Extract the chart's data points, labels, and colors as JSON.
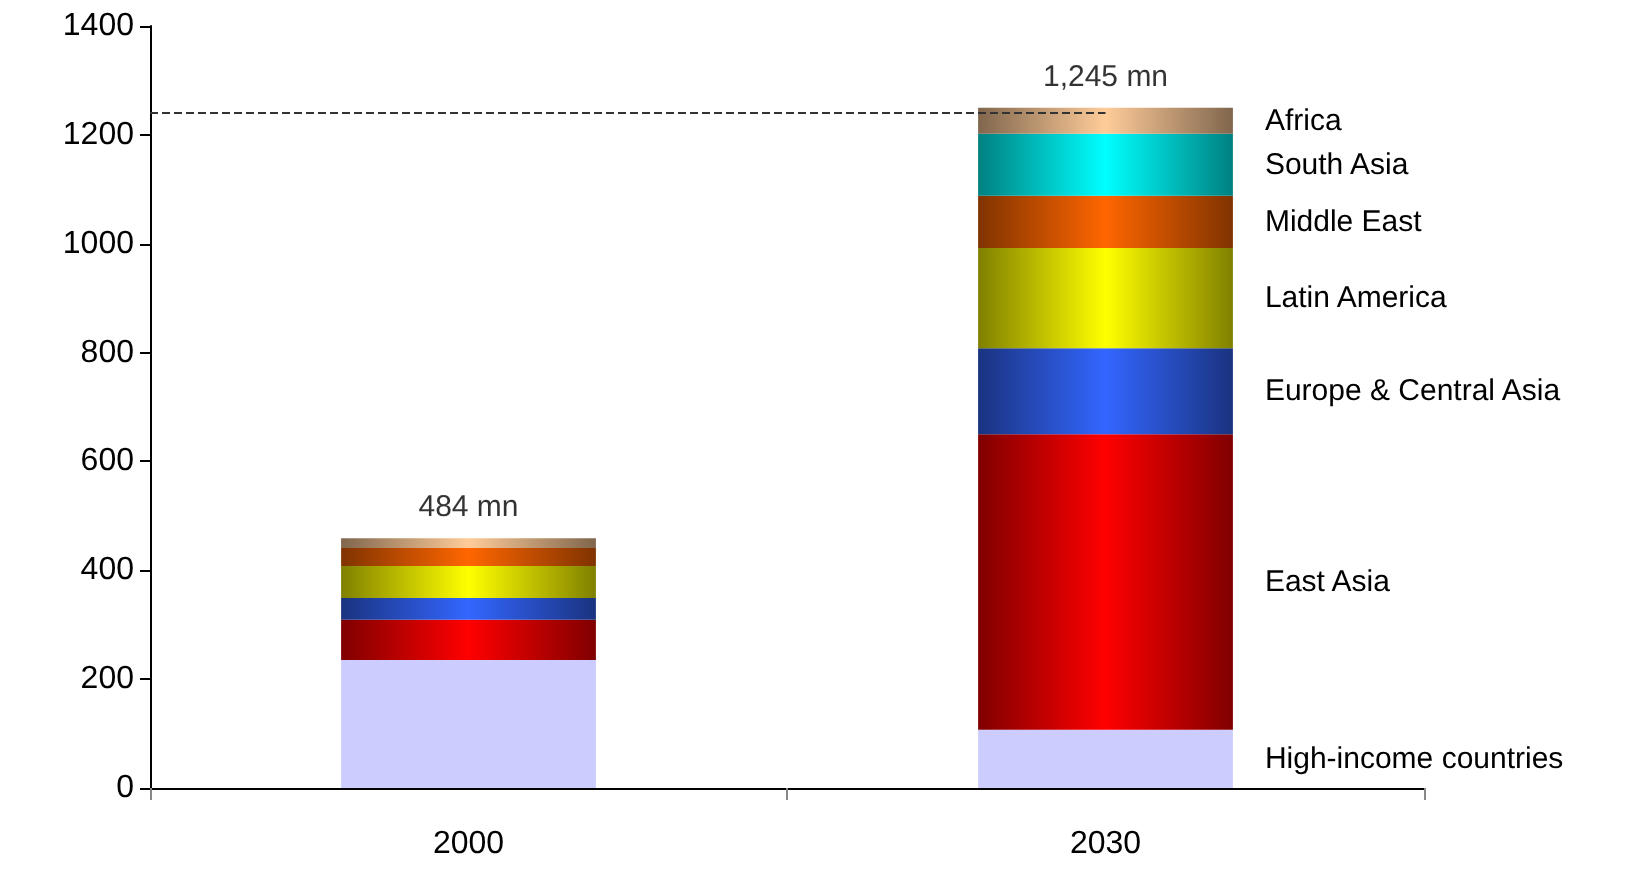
{
  "chart_data": {
    "type": "bar",
    "stacked": true,
    "categories": [
      "2000",
      "2030"
    ],
    "series": [
      {
        "name": "High-income countries",
        "color": "#ccccff",
        "values": [
          235,
          107
        ]
      },
      {
        "name": "East Asia",
        "color": "#ff0000",
        "values": [
          74,
          543
        ]
      },
      {
        "name": "Europe & Central Asia",
        "color": "#3366ff",
        "values": [
          40,
          158
        ]
      },
      {
        "name": "Latin America",
        "color": "#ffff00",
        "values": [
          59,
          184
        ]
      },
      {
        "name": "Middle East",
        "color": "#ff6600",
        "values": [
          33,
          96
        ]
      },
      {
        "name": "South Asia",
        "color": "#00ffff",
        "values": [
          0,
          114
        ]
      },
      {
        "name": "Africa",
        "color": "#ffcc99",
        "values": [
          18,
          48
        ]
      }
    ],
    "annotations": [
      {
        "text": "484 mn",
        "x": "2000",
        "y": 459
      },
      {
        "text": "1,245 mn",
        "x": "2030",
        "y": 1250
      }
    ],
    "ylim": [
      0,
      1400
    ],
    "yticks": [
      0,
      200,
      400,
      600,
      800,
      {
        "value": 1000,
        "label": "1000"
      },
      {
        "value": 1200,
        "label": "1200"
      },
      {
        "value": 1400,
        "label": "1400"
      }
    ],
    "grid": false,
    "legend": false,
    "ref_lines": [
      {
        "axis": "y",
        "value": 1240,
        "line_style": "dashed",
        "color": "#333333"
      }
    ]
  }
}
